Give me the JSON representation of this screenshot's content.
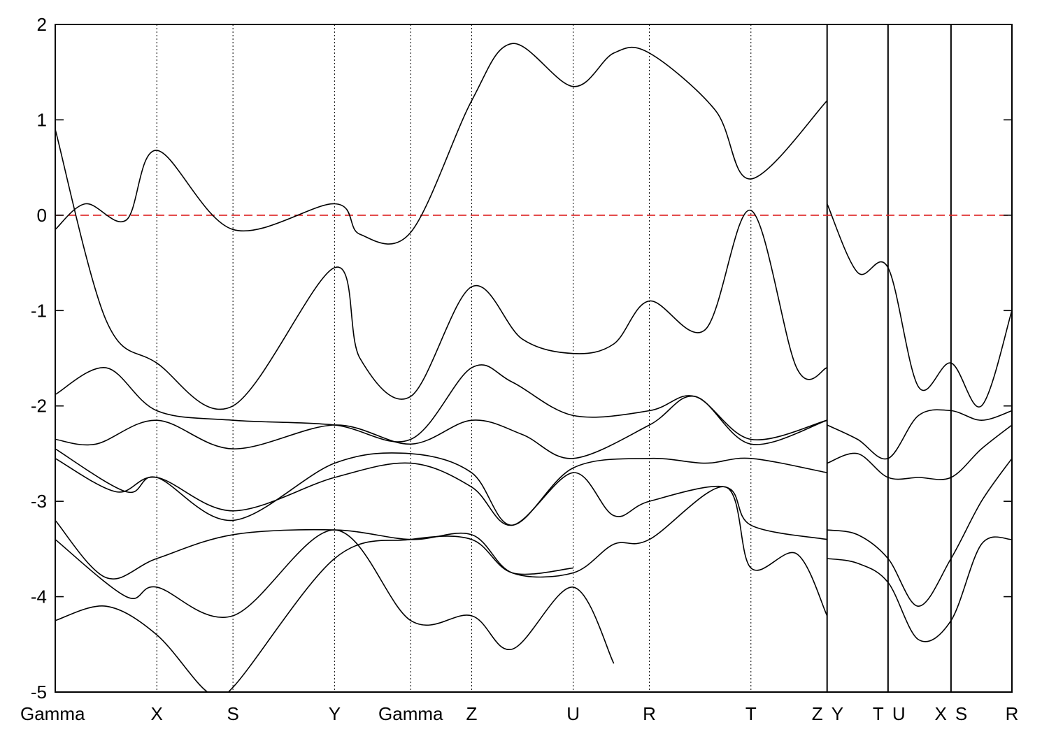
{
  "chart_data": {
    "type": "line",
    "title": "",
    "xlabel": "",
    "ylabel": "",
    "ylim": [
      -5,
      2
    ],
    "yticks": [
      -5,
      -4,
      -3,
      -2,
      -1,
      0,
      1,
      2
    ],
    "grid": false,
    "k_points": [
      {
        "label": "Gamma",
        "x": 0
      },
      {
        "label": "X",
        "x": 1.0
      },
      {
        "label": "S",
        "x": 1.75
      },
      {
        "label": "Y",
        "x": 2.75
      },
      {
        "label": "Gamma",
        "x": 3.5
      },
      {
        "label": "Z",
        "x": 4.1
      },
      {
        "label": "U",
        "x": 5.1
      },
      {
        "label": "R",
        "x": 5.85
      },
      {
        "label": "T",
        "x": 6.85
      },
      {
        "label": "Z",
        "x": 7.6
      },
      {
        "label": "Y",
        "x": 7.6
      },
      {
        "label": "T",
        "x": 8.2
      },
      {
        "label": "U",
        "x": 8.2
      },
      {
        "label": "X",
        "x": 8.82
      },
      {
        "label": "S",
        "x": 8.82
      },
      {
        "label": "R",
        "x": 9.42
      }
    ],
    "path_breaks": [
      7.6,
      8.2,
      8.82
    ],
    "fermi_level": 0,
    "series": [
      {
        "values": [
          [
            0,
            -0.15
          ],
          [
            0.3,
            0.12
          ],
          [
            0.7,
            -0.05
          ],
          [
            1.0,
            0.68
          ],
          [
            1.75,
            -0.15
          ],
          [
            2.75,
            0.12
          ],
          [
            3.0,
            -0.2
          ],
          [
            3.5,
            -0.18
          ],
          [
            4.1,
            1.2
          ],
          [
            4.5,
            1.8
          ],
          [
            5.1,
            1.35
          ],
          [
            5.5,
            1.7
          ],
          [
            5.85,
            1.7
          ],
          [
            6.5,
            1.1
          ],
          [
            6.85,
            0.38
          ],
          [
            7.6,
            1.2
          ]
        ]
      },
      {
        "values": [
          [
            0,
            0.9
          ],
          [
            0.5,
            -1.1
          ],
          [
            1.0,
            -1.55
          ],
          [
            1.75,
            -2.0
          ],
          [
            2.75,
            -0.55
          ],
          [
            3.0,
            -1.5
          ],
          [
            3.5,
            -1.9
          ],
          [
            4.1,
            -0.75
          ],
          [
            4.6,
            -1.3
          ],
          [
            5.1,
            -1.45
          ],
          [
            5.5,
            -1.35
          ],
          [
            5.85,
            -0.9
          ],
          [
            6.4,
            -1.2
          ],
          [
            6.85,
            0.05
          ],
          [
            7.3,
            -1.6
          ],
          [
            7.6,
            -1.6
          ]
        ]
      },
      {
        "values": [
          [
            0,
            -1.88
          ],
          [
            0.5,
            -1.6
          ],
          [
            1.0,
            -2.05
          ],
          [
            1.75,
            -2.15
          ],
          [
            2.75,
            -2.2
          ],
          [
            3.5,
            -2.35
          ],
          [
            4.1,
            -1.6
          ],
          [
            4.5,
            -1.75
          ],
          [
            5.1,
            -2.1
          ],
          [
            5.85,
            -2.05
          ],
          [
            6.3,
            -1.9
          ],
          [
            6.85,
            -2.35
          ],
          [
            7.6,
            -2.15
          ]
        ]
      },
      {
        "values": [
          [
            0,
            -2.35
          ],
          [
            0.4,
            -2.4
          ],
          [
            1.0,
            -2.15
          ],
          [
            1.75,
            -2.45
          ],
          [
            2.75,
            -2.2
          ],
          [
            3.5,
            -2.4
          ],
          [
            4.1,
            -2.15
          ],
          [
            4.6,
            -2.3
          ],
          [
            5.1,
            -2.55
          ],
          [
            5.85,
            -2.2
          ],
          [
            6.3,
            -1.9
          ],
          [
            6.85,
            -2.4
          ],
          [
            7.6,
            -2.15
          ]
        ]
      },
      {
        "values": [
          [
            0,
            -2.45
          ],
          [
            0.7,
            -2.9
          ],
          [
            1.0,
            -2.75
          ],
          [
            1.75,
            -3.2
          ],
          [
            2.75,
            -2.6
          ],
          [
            3.5,
            -2.5
          ],
          [
            4.1,
            -2.7
          ],
          [
            4.5,
            -3.25
          ],
          [
            5.1,
            -2.65
          ],
          [
            5.85,
            -2.55
          ],
          [
            6.4,
            -2.6
          ],
          [
            6.85,
            -2.55
          ],
          [
            7.6,
            -2.7
          ]
        ]
      },
      {
        "values": [
          [
            0,
            -2.55
          ],
          [
            0.6,
            -2.9
          ],
          [
            1.0,
            -2.75
          ],
          [
            1.75,
            -3.1
          ],
          [
            2.75,
            -2.75
          ],
          [
            3.5,
            -2.6
          ],
          [
            4.1,
            -2.85
          ],
          [
            4.5,
            -3.25
          ],
          [
            5.1,
            -2.7
          ],
          [
            5.5,
            -3.15
          ],
          [
            5.85,
            -3.0
          ],
          [
            6.6,
            -2.85
          ],
          [
            6.85,
            -3.25
          ],
          [
            7.6,
            -3.4
          ]
        ]
      },
      {
        "values": [
          [
            0,
            -3.2
          ],
          [
            0.5,
            -3.8
          ],
          [
            1.0,
            -3.6
          ],
          [
            1.75,
            -3.35
          ],
          [
            2.75,
            -3.3
          ],
          [
            3.5,
            -3.4
          ],
          [
            4.1,
            -3.35
          ],
          [
            4.5,
            -3.75
          ],
          [
            5.1,
            -3.75
          ],
          [
            5.5,
            -3.45
          ],
          [
            5.85,
            -3.4
          ],
          [
            6.6,
            -2.85
          ],
          [
            6.85,
            -3.7
          ],
          [
            7.3,
            -3.55
          ],
          [
            7.6,
            -4.2
          ]
        ]
      },
      {
        "values": [
          [
            0,
            -3.4
          ],
          [
            0.7,
            -4.0
          ],
          [
            1.0,
            -3.9
          ],
          [
            1.75,
            -4.2
          ],
          [
            2.75,
            -3.3
          ],
          [
            3.5,
            -4.25
          ],
          [
            4.1,
            -4.2
          ],
          [
            4.5,
            -4.55
          ],
          [
            5.1,
            -3.9
          ],
          [
            5.5,
            -4.7
          ]
        ]
      },
      {
        "values": [
          [
            0,
            -4.25
          ],
          [
            0.5,
            -4.1
          ],
          [
            1.0,
            -4.4
          ],
          [
            1.5,
            -5.0
          ],
          [
            1.75,
            -4.95
          ],
          [
            2.75,
            -3.6
          ],
          [
            3.5,
            -3.4
          ],
          [
            4.1,
            -3.4
          ],
          [
            4.5,
            -3.75
          ],
          [
            5.1,
            -3.7
          ]
        ]
      },
      {
        "values": [
          [
            7.6,
            0.12
          ],
          [
            7.9,
            -0.6
          ],
          [
            8.2,
            -0.55
          ],
          [
            8.5,
            -1.8
          ],
          [
            8.82,
            -1.55
          ],
          [
            9.12,
            -2.0
          ],
          [
            9.42,
            -1.0
          ]
        ]
      },
      {
        "values": [
          [
            7.6,
            -2.2
          ],
          [
            7.9,
            -2.35
          ],
          [
            8.2,
            -2.55
          ],
          [
            8.5,
            -2.1
          ],
          [
            8.82,
            -2.05
          ],
          [
            9.12,
            -2.15
          ],
          [
            9.42,
            -2.05
          ]
        ]
      },
      {
        "values": [
          [
            7.6,
            -2.6
          ],
          [
            7.9,
            -2.5
          ],
          [
            8.2,
            -2.75
          ],
          [
            8.5,
            -2.75
          ],
          [
            8.82,
            -2.75
          ],
          [
            9.12,
            -2.45
          ],
          [
            9.42,
            -2.2
          ]
        ]
      },
      {
        "values": [
          [
            7.6,
            -3.3
          ],
          [
            7.9,
            -3.35
          ],
          [
            8.2,
            -3.6
          ],
          [
            8.5,
            -4.1
          ],
          [
            8.82,
            -3.6
          ],
          [
            9.12,
            -3.0
          ],
          [
            9.42,
            -2.55
          ]
        ]
      },
      {
        "values": [
          [
            7.6,
            -3.6
          ],
          [
            7.9,
            -3.65
          ],
          [
            8.2,
            -3.85
          ],
          [
            8.5,
            -4.45
          ],
          [
            8.82,
            -4.25
          ],
          [
            9.12,
            -3.45
          ],
          [
            9.42,
            -3.4
          ]
        ]
      }
    ]
  }
}
